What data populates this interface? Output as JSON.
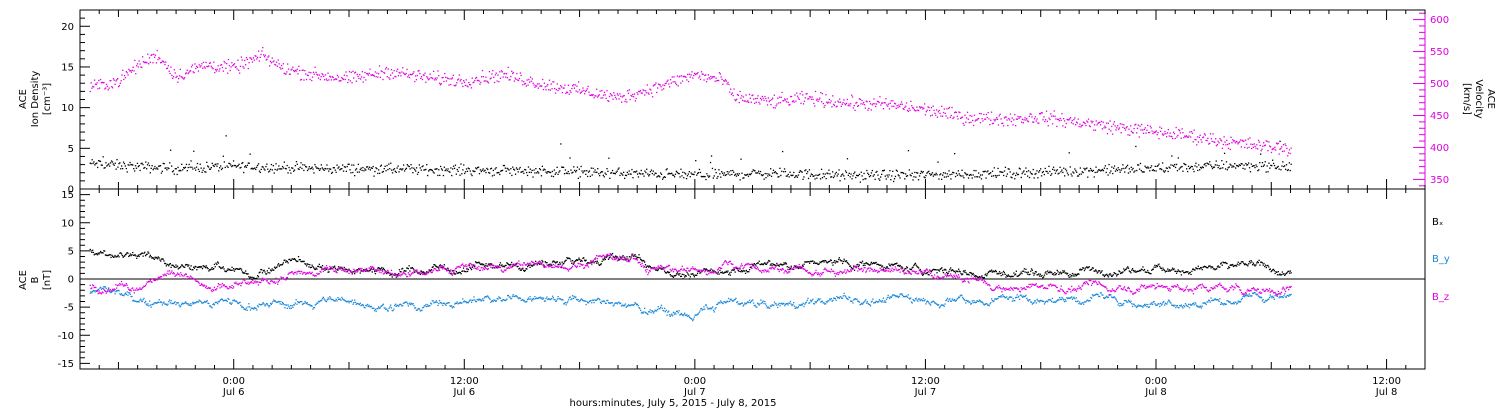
{
  "colors": {
    "black": "#000000",
    "magenta": "#e000e0",
    "blue": "#1a88d8",
    "axis": "#000000"
  },
  "chart_data": [
    {
      "type": "scatter",
      "panel": "top",
      "ylabel_left": [
        "ACE",
        "Ion Density",
        "[cm⁻³]"
      ],
      "ylabel_right": [
        "ACE",
        "Velocity",
        "[km/s]"
      ],
      "left_axis": {
        "ylim": [
          0,
          22
        ],
        "ticks": [
          0,
          5,
          10,
          15,
          20
        ]
      },
      "right_axis": {
        "ylim": [
          335,
          615
        ],
        "ticks": [
          350,
          400,
          450,
          500,
          550,
          600
        ]
      },
      "series": [
        {
          "key": "density",
          "axis": "left",
          "color": "black",
          "x_hours": [
            -7.5,
            -5,
            -3,
            0,
            4,
            8,
            12,
            16,
            20,
            24,
            28,
            32,
            36,
            40,
            44,
            48,
            52,
            55
          ],
          "y": [
            3.2,
            2.8,
            2.6,
            2.9,
            2.6,
            2.5,
            2.4,
            2.3,
            2.0,
            1.8,
            2.0,
            1.7,
            1.8,
            2.0,
            2.3,
            2.6,
            3.0,
            2.8
          ]
        },
        {
          "key": "velocity",
          "axis": "right",
          "color": "magenta",
          "x_hours": [
            -7.5,
            -6,
            -5,
            -4,
            -3,
            -1.5,
            0,
            1.5,
            2.5,
            4,
            6,
            8,
            10,
            12,
            14,
            16,
            18,
            20,
            22,
            24,
            25.5,
            26,
            28,
            30,
            32,
            34,
            36,
            38,
            40,
            42,
            44,
            46,
            48,
            50,
            52,
            55
          ],
          "y": [
            495,
            505,
            530,
            545,
            512,
            530,
            525,
            545,
            525,
            515,
            508,
            520,
            510,
            505,
            515,
            500,
            490,
            478,
            495,
            515,
            505,
            480,
            472,
            478,
            470,
            468,
            460,
            448,
            445,
            448,
            440,
            432,
            425,
            418,
            408,
            398
          ]
        }
      ]
    },
    {
      "type": "scatter",
      "panel": "bottom",
      "ylabel": [
        "ACE",
        "B",
        "[nT]"
      ],
      "ylim": [
        -16,
        16
      ],
      "ticks": [
        -15,
        -10,
        -5,
        0,
        5,
        10,
        15
      ],
      "zero_line": true,
      "series": [
        {
          "key": "bx",
          "name": "Bₓ",
          "color": "black",
          "x_hours": [
            -7.5,
            -5,
            -3,
            -1,
            1,
            3,
            5,
            8,
            12,
            16,
            18,
            20,
            22,
            24,
            26,
            28,
            32,
            36,
            40,
            44,
            48,
            52,
            55
          ],
          "y": [
            5.2,
            4.0,
            3.5,
            2.0,
            0.5,
            3.5,
            2.5,
            1.5,
            2.5,
            2.5,
            3.5,
            3.8,
            2.5,
            0.5,
            1.5,
            2.5,
            2.8,
            1.8,
            1.0,
            1.5,
            2.2,
            2.0,
            1.0
          ]
        },
        {
          "key": "by",
          "name": "B_y",
          "color": "blue",
          "x_hours": [
            -7.5,
            -5,
            -3,
            -1,
            1,
            3,
            5,
            8,
            12,
            16,
            18,
            20,
            22,
            24,
            26,
            28,
            32,
            36,
            40,
            44,
            48,
            52,
            55
          ],
          "y": [
            -2.5,
            -3.0,
            -3.5,
            -4.0,
            -4.2,
            -4.5,
            -3.8,
            -4.8,
            -3.5,
            -3.0,
            -3.8,
            -4.5,
            -5.5,
            -6.0,
            -4.0,
            -4.5,
            -3.8,
            -3.5,
            -3.2,
            -3.5,
            -3.8,
            -3.6,
            -3.2
          ]
        },
        {
          "key": "bz",
          "name": "B_z",
          "color": "magenta",
          "x_hours": [
            -7.5,
            -5,
            -3,
            -1,
            1,
            3,
            5,
            8,
            12,
            16,
            18,
            20,
            22,
            24,
            26,
            28,
            32,
            36,
            40,
            44,
            48,
            52,
            55
          ],
          "y": [
            -1.0,
            -1.5,
            2.5,
            -2.0,
            -1.0,
            0.5,
            2.0,
            1.0,
            2.0,
            2.5,
            3.0,
            3.5,
            2.0,
            1.0,
            2.5,
            2.0,
            1.5,
            1.0,
            -1.0,
            -1.5,
            -1.0,
            -1.5,
            -1.5
          ]
        }
      ],
      "legend": [
        "Bₓ",
        "B_y",
        "B_z"
      ]
    }
  ],
  "x_axis": {
    "xlim_hours": [
      -8,
      62
    ],
    "major_ticks": [
      {
        "hours": 0,
        "time": "0:00",
        "date": "Jul 6"
      },
      {
        "hours": 12,
        "time": "12:00",
        "date": "Jul 6"
      },
      {
        "hours": 24,
        "time": "0:00",
        "date": "Jul 7"
      },
      {
        "hours": 36,
        "time": "12:00",
        "date": "Jul 7"
      },
      {
        "hours": 48,
        "time": "0:00",
        "date": "Jul 8"
      },
      {
        "hours": 60,
        "time": "12:00",
        "date": "Jul 8"
      }
    ],
    "label": "hours:minutes, July  5, 2015 - July  8, 2015"
  },
  "legend_labels": {
    "bx": "Bₓ",
    "by": "B_y",
    "bz": "B_z"
  }
}
